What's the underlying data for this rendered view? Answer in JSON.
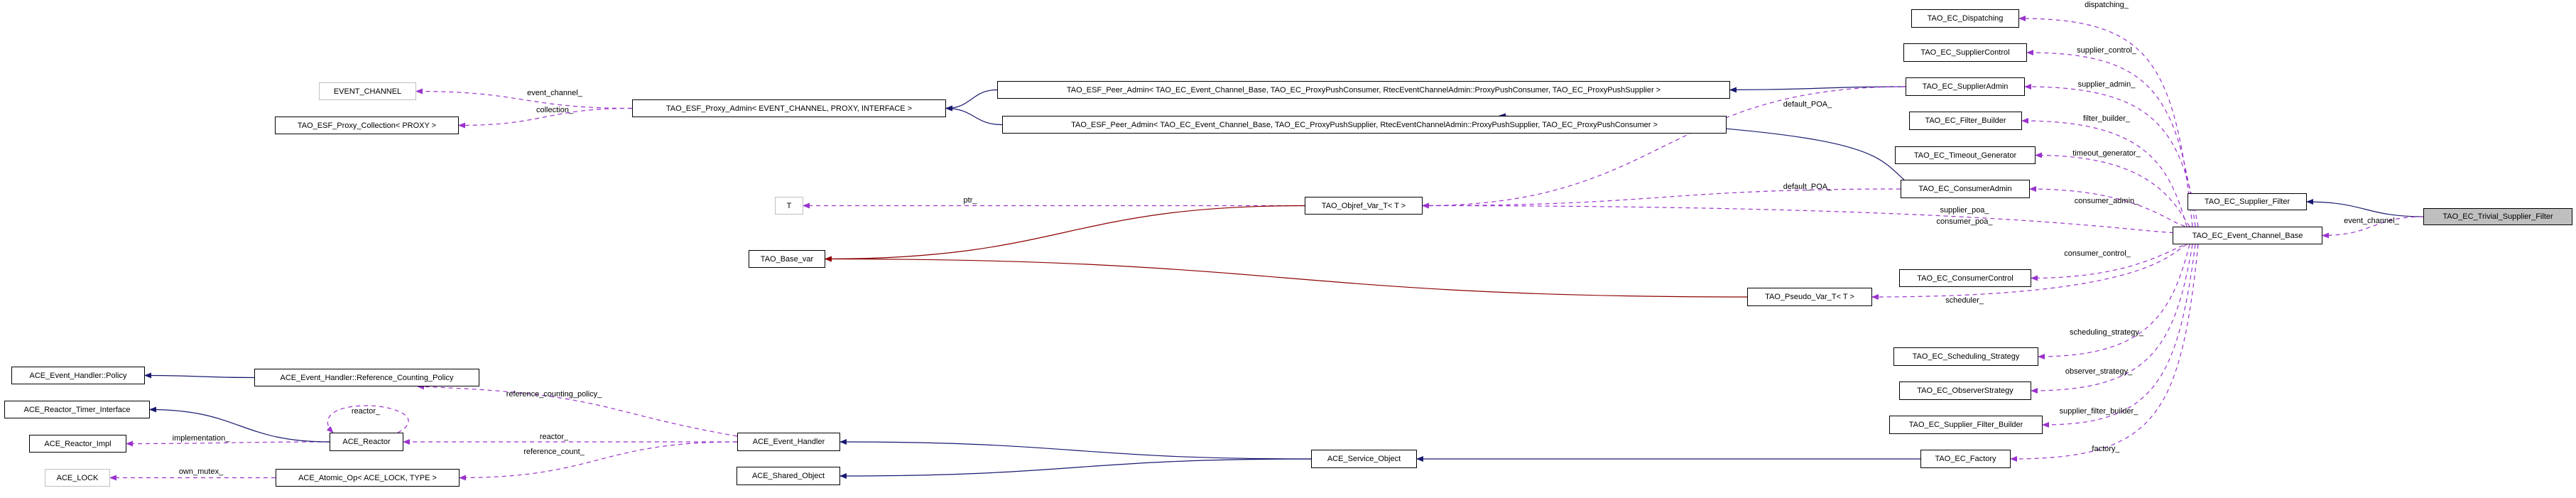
{
  "colors": {
    "inheritance": "#191970",
    "usage": "#9a32cd",
    "template": "#8b0000",
    "focus_fill": "#bfbfbf",
    "external_border": "#bfbfbf"
  },
  "nodes": {
    "trivial": "TAO_EC_Trivial_Supplier_Filter",
    "sfilter": "TAO_EC_Supplier_Filter",
    "ecb": "TAO_EC_Event_Channel_Base",
    "disp": "TAO_EC_Dispatching",
    "sctl": "TAO_EC_SupplierControl",
    "sadm": "TAO_EC_SupplierAdmin",
    "fb": "TAO_EC_Filter_Builder",
    "tg": "TAO_EC_Timeout_Generator",
    "cadm": "TAO_EC_ConsumerAdmin",
    "cctl": "TAO_EC_ConsumerControl",
    "pseudo": "TAO_Pseudo_Var_T< T >",
    "sched": "TAO_EC_Scheduling_Strategy",
    "obs": "TAO_EC_ObserverStrategy",
    "sfb": "TAO_EC_Supplier_Filter_Builder",
    "fact": "TAO_EC_Factory",
    "objref": "TAO_Objref_Var_T< T >",
    "peer1": "TAO_ESF_Peer_Admin< TAO_EC_Event_Channel_Base, TAO_EC_ProxyPushConsumer, RtecEventChannelAdmin::ProxyPushConsumer, TAO_EC_ProxyPushSupplier >",
    "peer2": "TAO_ESF_Peer_Admin< TAO_EC_Event_Channel_Base, TAO_EC_ProxyPushSupplier, RtecEventChannelAdmin::ProxyPushSupplier, TAO_EC_ProxyPushConsumer >",
    "proxyadmin": "TAO_ESF_Proxy_Admin< EVENT_CHANNEL, PROXY, INTERFACE >",
    "evch": "EVENT_CHANNEL",
    "coll": "TAO_ESF_Proxy_Collection< PROXY >",
    "T": "T",
    "basevar": "TAO_Base_var",
    "policy": "ACE_Event_Handler::Policy",
    "rcp": "ACE_Event_Handler::Reference_Counting_Policy",
    "rti": "ACE_Reactor_Timer_Interface",
    "rimpl": "ACE_Reactor_Impl",
    "reactor": "ACE_Reactor",
    "lock": "ACE_LOCK",
    "atomic": "ACE_Atomic_Op< ACE_LOCK, TYPE >",
    "eh": "ACE_Event_Handler",
    "so": "ACE_Shared_Object",
    "svc": "ACE_Service_Object"
  },
  "edges": [
    {
      "from": "trivial",
      "to": "sfilter",
      "kind": "inheritance",
      "labels": []
    },
    {
      "from": "trivial",
      "to": "ecb",
      "kind": "usage",
      "labels": [
        "event_channel_"
      ]
    },
    {
      "from": "ecb",
      "to": "disp",
      "kind": "usage",
      "labels": [
        "dispatching_"
      ]
    },
    {
      "from": "ecb",
      "to": "sctl",
      "kind": "usage",
      "labels": [
        "supplier_control_"
      ]
    },
    {
      "from": "ecb",
      "to": "sadm",
      "kind": "usage",
      "labels": [
        "supplier_admin_"
      ]
    },
    {
      "from": "ecb",
      "to": "fb",
      "kind": "usage",
      "labels": [
        "filter_builder_"
      ]
    },
    {
      "from": "ecb",
      "to": "tg",
      "kind": "usage",
      "labels": [
        "timeout_generator_"
      ]
    },
    {
      "from": "ecb",
      "to": "cadm",
      "kind": "usage",
      "labels": [
        "consumer_admin_"
      ]
    },
    {
      "from": "ecb",
      "to": "objref",
      "kind": "usage",
      "labels": [
        "supplier_poa_",
        "consumer_poa_"
      ]
    },
    {
      "from": "ecb",
      "to": "cctl",
      "kind": "usage",
      "labels": [
        "consumer_control_"
      ]
    },
    {
      "from": "ecb",
      "to": "pseudo",
      "kind": "usage",
      "labels": [
        "scheduler_"
      ]
    },
    {
      "from": "ecb",
      "to": "sched",
      "kind": "usage",
      "labels": [
        "scheduling_strategy_"
      ]
    },
    {
      "from": "ecb",
      "to": "obs",
      "kind": "usage",
      "labels": [
        "observer_strategy_"
      ]
    },
    {
      "from": "ecb",
      "to": "sfb",
      "kind": "usage",
      "labels": [
        "supplier_filter_builder_"
      ]
    },
    {
      "from": "ecb",
      "to": "fact",
      "kind": "usage",
      "labels": [
        "factory_"
      ]
    },
    {
      "from": "sadm",
      "to": "peer1",
      "kind": "inheritance",
      "labels": []
    },
    {
      "from": "cadm",
      "to": "peer2",
      "kind": "inheritance",
      "labels": []
    },
    {
      "from": "sadm",
      "to": "objref",
      "kind": "usage",
      "labels": [
        "default_POA_"
      ]
    },
    {
      "from": "cadm",
      "to": "objref",
      "kind": "usage",
      "labels": [
        "default_POA_"
      ]
    },
    {
      "from": "peer1",
      "to": "proxyadmin",
      "kind": "inheritance",
      "labels": []
    },
    {
      "from": "peer2",
      "to": "proxyadmin",
      "kind": "inheritance",
      "labels": []
    },
    {
      "from": "proxyadmin",
      "to": "evch",
      "kind": "usage",
      "labels": [
        "event_channel_"
      ]
    },
    {
      "from": "proxyadmin",
      "to": "coll",
      "kind": "usage",
      "labels": [
        "collection_"
      ]
    },
    {
      "from": "objref",
      "to": "T",
      "kind": "usage",
      "labels": [
        "ptr_"
      ]
    },
    {
      "from": "objref",
      "to": "basevar",
      "kind": "template",
      "labels": []
    },
    {
      "from": "pseudo",
      "to": "basevar",
      "kind": "template",
      "labels": []
    },
    {
      "from": "fact",
      "to": "svc",
      "kind": "inheritance",
      "labels": []
    },
    {
      "from": "svc",
      "to": "eh",
      "kind": "inheritance",
      "labels": []
    },
    {
      "from": "svc",
      "to": "so",
      "kind": "inheritance",
      "labels": []
    },
    {
      "from": "eh",
      "to": "rcp",
      "kind": "usage",
      "labels": [
        "reference_counting_policy_"
      ]
    },
    {
      "from": "eh",
      "to": "reactor",
      "kind": "usage",
      "labels": [
        "reactor_"
      ]
    },
    {
      "from": "eh",
      "to": "atomic",
      "kind": "usage",
      "labels": [
        "reference_count_"
      ]
    },
    {
      "from": "reactor",
      "to": "reactor",
      "kind": "usage",
      "labels": [
        "reactor_"
      ]
    },
    {
      "from": "reactor",
      "to": "rimpl",
      "kind": "usage",
      "labels": [
        "implementation_"
      ]
    },
    {
      "from": "reactor",
      "to": "rti",
      "kind": "inheritance",
      "labels": []
    },
    {
      "from": "rcp",
      "to": "policy",
      "kind": "inheritance",
      "labels": []
    },
    {
      "from": "atomic",
      "to": "lock",
      "kind": "usage",
      "labels": [
        "own_mutex_"
      ]
    }
  ]
}
